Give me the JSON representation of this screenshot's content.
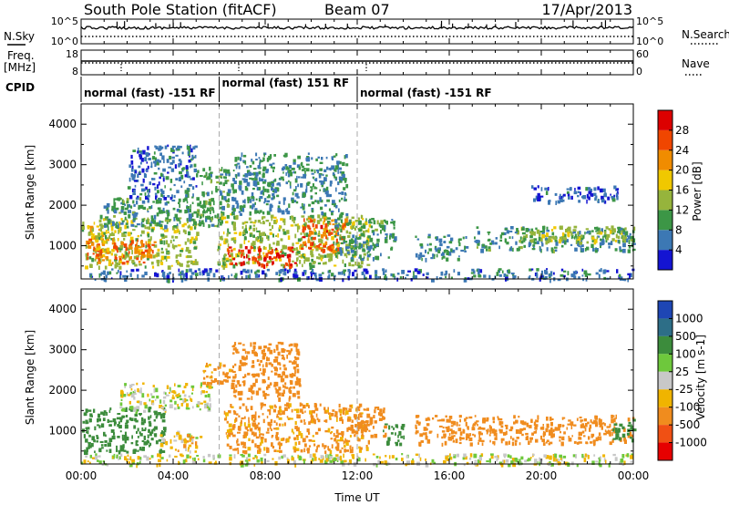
{
  "header": {
    "title": "South Pole Station (fitACF)",
    "beam": "Beam 07",
    "date": "17/Apr/2013"
  },
  "side_labels": {
    "nsky": "N.Sky",
    "freq_line1": "Freq.",
    "freq_line2": "[MHz]",
    "cpid": "CPID",
    "nsearch": "N.Search",
    "nave": "Nave"
  },
  "noise_panel": {
    "left_ticks": [
      "10^5",
      "10^0"
    ],
    "right_ticks": [
      "10^5",
      "10^0"
    ]
  },
  "freq_panel": {
    "left_ticks": [
      "18",
      "8"
    ],
    "right_ticks": [
      "60",
      "0"
    ]
  },
  "cpid_segments": [
    {
      "label": "normal (fast) -151 RF",
      "start_hour": 0,
      "end_hour": 6
    },
    {
      "label": "normal (fast) 151 RF",
      "start_hour": 6,
      "end_hour": 12
    },
    {
      "label": "normal (fast) -151 RF",
      "start_hour": 12,
      "end_hour": 24
    }
  ],
  "axes": {
    "xlabel": "Time UT",
    "ylabel": "Slant Range [km]",
    "x_ticks": [
      "00:00",
      "04:00",
      "08:00",
      "12:00",
      "16:00",
      "20:00",
      "00:00"
    ],
    "y_ticks": [
      "1000",
      "2000",
      "3000",
      "4000"
    ]
  },
  "power_colorbar": {
    "label": "Power [dB]",
    "ticks": [
      "4",
      "8",
      "12",
      "16",
      "20",
      "24",
      "28"
    ],
    "colors": [
      "#1414d2",
      "#3c78b4",
      "#3c9646",
      "#96b43c",
      "#f0c800",
      "#f08c00",
      "#f04600",
      "#dc0000"
    ]
  },
  "velocity_colorbar": {
    "label": "Velocity [m s-1]",
    "ticks": [
      "1000",
      "500",
      "100",
      "25",
      "-25",
      "-100",
      "-500",
      "-1000"
    ],
    "colors": [
      "#1e46b4",
      "#2d6e87",
      "#3c8c3c",
      "#6ec83c",
      "#c8c8c8",
      "#f0b400",
      "#f08c1e",
      "#f05014",
      "#e60000"
    ]
  },
  "chart_data": [
    {
      "type": "heatmap",
      "title": "South Pole Station (fitACF) Beam 07 17/Apr/2013",
      "quantity": "Power [dB]",
      "xlabel": "Time UT",
      "ylabel": "Slant Range [km]",
      "xlim_hours": [
        0,
        24
      ],
      "ylim_km": [
        180,
        4500
      ],
      "grid": false,
      "regions": [
        {
          "t": [
            0.0,
            5.0
          ],
          "r": [
            500,
            1700
          ],
          "value_db": 14
        },
        {
          "t": [
            0.2,
            3.2
          ],
          "r": [
            600,
            1200
          ],
          "value_db": 24
        },
        {
          "t": [
            0.3,
            1.2
          ],
          "r": [
            900,
            1500
          ],
          "value_db": 18
        },
        {
          "t": [
            0.8,
            5.6
          ],
          "r": [
            1500,
            2200
          ],
          "value_db": 9
        },
        {
          "t": [
            2.0,
            5.0
          ],
          "r": [
            2200,
            3500
          ],
          "value_db": 6
        },
        {
          "t": [
            5.0,
            6.4
          ],
          "r": [
            1500,
            3000
          ],
          "value_db": 10
        },
        {
          "t": [
            5.9,
            12.5
          ],
          "r": [
            500,
            1800
          ],
          "value_db": 14
        },
        {
          "t": [
            6.3,
            9.3
          ],
          "r": [
            500,
            1000
          ],
          "value_db": 28
        },
        {
          "t": [
            9.5,
            11.5
          ],
          "r": [
            900,
            1700
          ],
          "value_db": 25
        },
        {
          "t": [
            6.5,
            11.5
          ],
          "r": [
            1800,
            3300
          ],
          "value_db": 8
        },
        {
          "t": [
            11.0,
            13.6
          ],
          "r": [
            700,
            1700
          ],
          "value_db": 9
        },
        {
          "t": [
            14.5,
            16.7
          ],
          "r": [
            700,
            1300
          ],
          "value_db": 8
        },
        {
          "t": [
            17.0,
            24.0
          ],
          "r": [
            900,
            1500
          ],
          "value_db": 9
        },
        {
          "t": [
            19.0,
            24.0
          ],
          "r": [
            1100,
            1500
          ],
          "value_db": 14
        },
        {
          "t": [
            19.5,
            23.5
          ],
          "r": [
            2100,
            2500
          ],
          "value_db": 5
        },
        {
          "t": [
            0.0,
            24.0
          ],
          "r": [
            180,
            450
          ],
          "value_db": 6
        }
      ]
    },
    {
      "type": "heatmap",
      "title": "South Pole Station (fitACF) Beam 07 17/Apr/2013",
      "quantity": "Velocity [m s-1]",
      "xlabel": "Time UT",
      "ylabel": "Slant Range [km]",
      "xlim_hours": [
        0,
        24
      ],
      "ylim_km": [
        180,
        4500
      ],
      "grid": false,
      "regions": [
        {
          "t": [
            0.0,
            3.6
          ],
          "r": [
            500,
            1600
          ],
          "value_ms": 300
        },
        {
          "t": [
            3.4,
            5.2
          ],
          "r": [
            500,
            1000
          ],
          "value_ms": -60
        },
        {
          "t": [
            1.6,
            5.6
          ],
          "r": [
            1500,
            2200
          ],
          "value_ms": 0
        },
        {
          "t": [
            5.2,
            6.6
          ],
          "r": [
            2200,
            2700
          ],
          "value_ms": -150
        },
        {
          "t": [
            6.2,
            12.5
          ],
          "r": [
            500,
            1700
          ],
          "value_ms": -150
        },
        {
          "t": [
            6.5,
            9.5
          ],
          "r": [
            1800,
            3200
          ],
          "value_ms": -200
        },
        {
          "t": [
            11.8,
            13.2
          ],
          "r": [
            900,
            1600
          ],
          "value_ms": -250
        },
        {
          "t": [
            13.0,
            14.0
          ],
          "r": [
            700,
            1200
          ],
          "value_ms": 300
        },
        {
          "t": [
            14.5,
            24.0
          ],
          "r": [
            700,
            1400
          ],
          "value_ms": -200
        },
        {
          "t": [
            23.0,
            24.0
          ],
          "r": [
            800,
            1300
          ],
          "value_ms": 300
        },
        {
          "t": [
            0.0,
            24.0
          ],
          "r": [
            180,
            450
          ],
          "value_ms": 0
        }
      ]
    }
  ]
}
